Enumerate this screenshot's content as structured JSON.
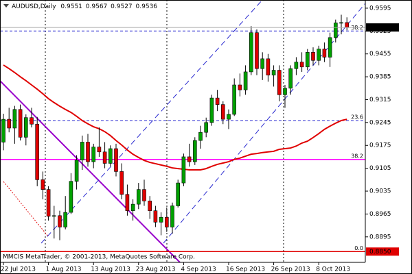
{
  "chart_data": {
    "type": "candlestick",
    "title": "AUDUSD,Daily",
    "footer": "MMCIS MetaTrader, © 2001-2013, MetaQuotes Software Corp.",
    "categories": [
      "22 Jul 2013",
      null,
      null,
      null,
      null,
      null,
      null,
      null,
      "1 Aug 2013",
      null,
      null,
      null,
      null,
      null,
      null,
      null,
      "13 Aug 2013",
      null,
      null,
      null,
      null,
      null,
      null,
      null,
      "23 Aug 2013",
      null,
      null,
      null,
      null,
      null,
      null,
      null,
      "4 Sep 2013",
      null,
      null,
      null,
      null,
      null,
      null,
      null,
      "16 Sep 2013",
      null,
      null,
      null,
      null,
      null,
      null,
      null,
      "26 Sep 2013",
      null,
      null,
      null,
      null,
      null,
      null,
      null,
      "8 Oct 2013",
      null,
      null,
      null,
      null,
      null
    ],
    "open": [
      0.9185,
      0.9255,
      0.9228,
      0.9285,
      0.92,
      0.926,
      0.924,
      0.907,
      0.904,
      0.8958,
      0.896,
      0.8925,
      0.897,
      0.9065,
      0.913,
      0.9185,
      0.9125,
      0.917,
      0.9155,
      0.912,
      0.9165,
      0.9095,
      0.9025,
      0.8975,
      0.8995,
      0.904,
      0.9005,
      0.8975,
      0.894,
      0.8955,
      0.8925,
      0.899,
      0.906,
      0.914,
      0.9125,
      0.919,
      0.9215,
      0.9245,
      0.932,
      0.93,
      0.9255,
      0.927,
      0.936,
      0.9345,
      0.94,
      0.952,
      0.941,
      0.944,
      0.939,
      0.9405,
      0.933,
      0.935,
      0.941,
      0.943,
      0.9415,
      0.946,
      0.9435,
      0.947,
      0.9445,
      0.9505,
      0.955,
      0.9551
    ],
    "high": [
      0.9272,
      0.929,
      0.9296,
      0.93,
      0.927,
      0.929,
      0.9262,
      0.9095,
      0.905,
      0.899,
      0.8975,
      0.902,
      0.909,
      0.9145,
      0.9205,
      0.921,
      0.918,
      0.923,
      0.9185,
      0.9175,
      0.918,
      0.912,
      0.9055,
      0.901,
      0.906,
      0.907,
      0.902,
      0.899,
      0.897,
      0.8985,
      0.9,
      0.907,
      0.915,
      0.918,
      0.92,
      0.9235,
      0.926,
      0.933,
      0.9345,
      0.931,
      0.9285,
      0.938,
      0.9395,
      0.942,
      0.954,
      0.953,
      0.946,
      0.9455,
      0.942,
      0.942,
      0.936,
      0.942,
      0.9445,
      0.946,
      0.947,
      0.9475,
      0.948,
      0.949,
      0.952,
      0.956,
      0.9575,
      0.9567
    ],
    "low": [
      0.916,
      0.9215,
      0.918,
      0.919,
      0.9175,
      0.923,
      0.905,
      0.901,
      0.8945,
      0.889,
      0.8885,
      0.8918,
      0.8965,
      0.904,
      0.91,
      0.911,
      0.9105,
      0.914,
      0.9105,
      0.911,
      0.908,
      0.901,
      0.896,
      0.8945,
      0.898,
      0.899,
      0.895,
      0.8925,
      0.89,
      0.891,
      0.8905,
      0.8985,
      0.905,
      0.911,
      0.9115,
      0.9165,
      0.92,
      0.9235,
      0.928,
      0.924,
      0.9225,
      0.9265,
      0.9325,
      0.933,
      0.939,
      0.939,
      0.9375,
      0.937,
      0.9355,
      0.931,
      0.929,
      0.933,
      0.939,
      0.94,
      0.9405,
      0.942,
      0.942,
      0.943,
      0.9415,
      0.949,
      0.9515,
      0.9527
    ],
    "close": [
      0.9255,
      0.9228,
      0.9285,
      0.92,
      0.926,
      0.924,
      0.907,
      0.904,
      0.8958,
      0.896,
      0.8925,
      0.897,
      0.9065,
      0.913,
      0.9185,
      0.9125,
      0.917,
      0.9155,
      0.912,
      0.9165,
      0.9095,
      0.9025,
      0.8975,
      0.8995,
      0.904,
      0.9005,
      0.8975,
      0.894,
      0.8955,
      0.8925,
      0.899,
      0.906,
      0.914,
      0.9125,
      0.919,
      0.9215,
      0.9245,
      0.932,
      0.93,
      0.9255,
      0.927,
      0.936,
      0.9345,
      0.94,
      0.952,
      0.941,
      0.944,
      0.939,
      0.9405,
      0.933,
      0.935,
      0.941,
      0.943,
      0.9415,
      0.946,
      0.9435,
      0.947,
      0.9445,
      0.9505,
      0.955,
      0.9551,
      0.9536
    ],
    "up_color": "#00a000",
    "down_color": "#e00000",
    "ma": {
      "color": "#e00000",
      "values": [
        0.9421,
        0.941,
        0.9398,
        0.9385,
        0.9373,
        0.936,
        0.9347,
        0.9333,
        0.9318,
        0.9306,
        0.9295,
        0.9285,
        0.9276,
        0.9264,
        0.9251,
        0.9241,
        0.9232,
        0.9226,
        0.9217,
        0.9205,
        0.919,
        0.9176,
        0.9161,
        0.9148,
        0.9138,
        0.9129,
        0.9123,
        0.9119,
        0.9115,
        0.9111,
        0.9106,
        0.9104,
        0.9102,
        0.91,
        0.91,
        0.91,
        0.9104,
        0.9111,
        0.9117,
        0.9121,
        0.9125,
        0.9132,
        0.9136,
        0.9142,
        0.9148,
        0.915,
        0.9153,
        0.9155,
        0.9157,
        0.9163,
        0.9165,
        0.9167,
        0.9173,
        0.9182,
        0.9188,
        0.9199,
        0.9211,
        0.9224,
        0.9234,
        0.9243,
        0.9251,
        0.9255
      ]
    },
    "levels": [
      {
        "label": "38.2",
        "value": 0.9525,
        "color": "#2a2ad0",
        "dashed": true
      },
      {
        "label": "23.6",
        "value": 0.9251,
        "color": "#2a2ad0",
        "dashed": true
      },
      {
        "label": "38.2",
        "value": 0.9132,
        "color": "#ff00ff",
        "dashed": false
      },
      {
        "label": "0.0",
        "value": {
          "value": 0.885,
          "label": "0.8850"
        },
        "color": "#e00000",
        "dashed": false
      }
    ],
    "ylim": [
      0.8817,
      0.962
    ],
    "yticks": [
      0.9595,
      0.9525,
      0.9455,
      0.9385,
      0.9315,
      0.9245,
      0.9175,
      0.9105,
      0.9035,
      0.8965,
      0.8895
    ]
  }
}
